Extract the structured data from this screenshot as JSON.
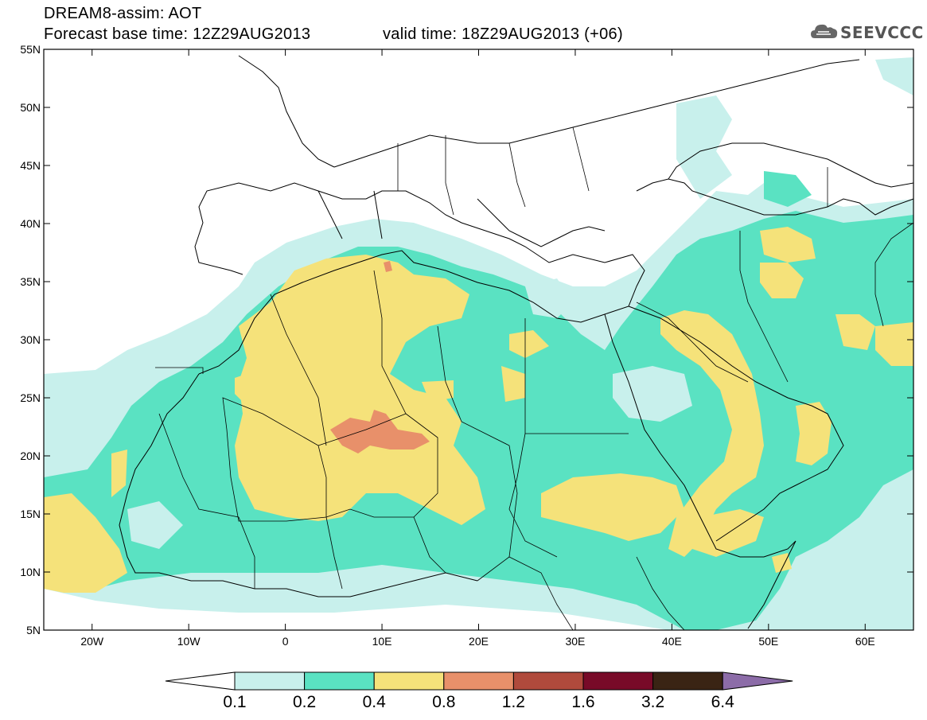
{
  "header": {
    "title": "DREAM8-assim: AOT",
    "base_time": "Forecast base time: 12Z29AUG2013",
    "valid_time": "valid time: 18Z29AUG2013 (+06)"
  },
  "logo": {
    "text": "SEEVCCC",
    "icon": "cloud-icon"
  },
  "map": {
    "lat_labels": [
      "55N",
      "50N",
      "45N",
      "40N",
      "35N",
      "30N",
      "25N",
      "20N",
      "15N",
      "10N",
      "5N"
    ],
    "lon_labels": [
      "20W",
      "10W",
      "0",
      "10E",
      "20E",
      "30E",
      "40E",
      "50E",
      "60E"
    ],
    "lon_range": [
      -25,
      65
    ],
    "lat_range": [
      5,
      55
    ]
  },
  "legend": {
    "values": [
      "0.1",
      "0.2",
      "0.4",
      "0.8",
      "1.2",
      "1.6",
      "3.2",
      "6.4"
    ],
    "colors": [
      "#ffffff",
      "#c8f0ec",
      "#5ae2c2",
      "#f5e27a",
      "#e8906a",
      "#b04a3c",
      "#780a28",
      "#3a2414",
      "#8c6ca8"
    ]
  }
}
